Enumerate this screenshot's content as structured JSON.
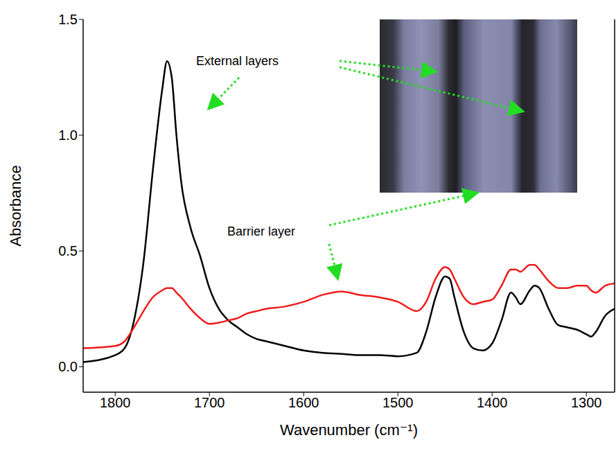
{
  "chart_data": {
    "type": "line",
    "x_label": "Wavenumber (cm⁻¹)",
    "y_label": "Absorbance",
    "x": [
      1834,
      1800,
      1790,
      1780,
      1770,
      1760,
      1750,
      1745,
      1740,
      1735,
      1730,
      1720,
      1710,
      1700,
      1690,
      1680,
      1670,
      1660,
      1650,
      1640,
      1620,
      1600,
      1580,
      1560,
      1540,
      1520,
      1500,
      1480,
      1470,
      1460,
      1450,
      1445,
      1440,
      1430,
      1420,
      1410,
      1400,
      1390,
      1380,
      1375,
      1370,
      1360,
      1355,
      1350,
      1340,
      1330,
      1320,
      1310,
      1300,
      1295,
      1290,
      1280,
      1270
    ],
    "series": [
      {
        "color": "#000000",
        "values": [
          0.02,
          0.05,
          0.08,
          0.2,
          0.45,
          0.85,
          1.2,
          1.32,
          1.25,
          1.0,
          0.8,
          0.6,
          0.48,
          0.34,
          0.25,
          0.2,
          0.17,
          0.14,
          0.12,
          0.11,
          0.09,
          0.07,
          0.06,
          0.055,
          0.05,
          0.05,
          0.045,
          0.06,
          0.15,
          0.3,
          0.39,
          0.38,
          0.3,
          0.15,
          0.08,
          0.07,
          0.1,
          0.2,
          0.32,
          0.3,
          0.27,
          0.33,
          0.35,
          0.34,
          0.25,
          0.18,
          0.17,
          0.16,
          0.14,
          0.13,
          0.15,
          0.22,
          0.25
        ]
      },
      {
        "color": "#ee1c1c",
        "values": [
          0.08,
          0.09,
          0.11,
          0.17,
          0.24,
          0.3,
          0.33,
          0.34,
          0.34,
          0.32,
          0.3,
          0.25,
          0.21,
          0.185,
          0.19,
          0.2,
          0.21,
          0.23,
          0.24,
          0.25,
          0.26,
          0.28,
          0.31,
          0.325,
          0.31,
          0.3,
          0.28,
          0.24,
          0.28,
          0.38,
          0.43,
          0.42,
          0.38,
          0.3,
          0.27,
          0.28,
          0.29,
          0.35,
          0.42,
          0.42,
          0.41,
          0.44,
          0.44,
          0.42,
          0.37,
          0.34,
          0.34,
          0.35,
          0.35,
          0.33,
          0.32,
          0.35,
          0.36
        ]
      }
    ],
    "xlim": [
      1834,
      1270
    ],
    "xticks": [
      1800,
      1700,
      1600,
      1500,
      1400,
      1300
    ],
    "ylim": [
      -0.11,
      1.5
    ],
    "yticks": [
      {
        "value": 0,
        "label": "0.0"
      },
      {
        "value": 0.5,
        "label": "0.5"
      },
      {
        "value": 1,
        "label": "1.0"
      },
      {
        "value": 1.5,
        "label": "1.5"
      }
    ],
    "annotations": [
      {
        "text": "External layers"
      },
      {
        "text": "Barrier layer"
      }
    ]
  }
}
